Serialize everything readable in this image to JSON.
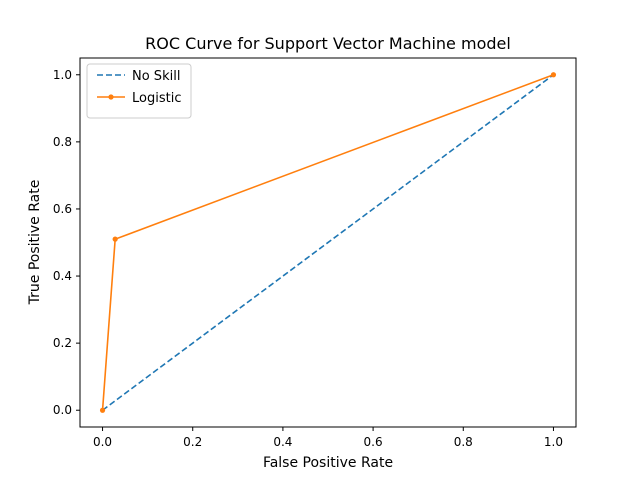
{
  "chart_data": {
    "type": "line",
    "title": "ROC Curve for Support Vector Machine model",
    "xlabel": "False Positive Rate",
    "ylabel": "True Positive Rate",
    "xlim": [
      -0.05,
      1.05
    ],
    "ylim": [
      -0.05,
      1.05
    ],
    "xticks": [
      0.0,
      0.2,
      0.4,
      0.6,
      0.8,
      1.0
    ],
    "xtick_labels": [
      "0.0",
      "0.2",
      "0.4",
      "0.6",
      "0.8",
      "1.0"
    ],
    "yticks": [
      0.0,
      0.2,
      0.4,
      0.6,
      0.8,
      1.0
    ],
    "ytick_labels": [
      "0.0",
      "0.2",
      "0.4",
      "0.6",
      "0.8",
      "1.0"
    ],
    "grid": false,
    "legend_position": "upper-left",
    "series": [
      {
        "name": "No Skill",
        "x": [
          0.0,
          1.0
        ],
        "y": [
          0.0,
          1.0
        ],
        "color": "#1f77b4",
        "linestyle": "dashed",
        "marker": "none"
      },
      {
        "name": "Logistic",
        "x": [
          0.0,
          0.028,
          1.0
        ],
        "y": [
          0.0,
          0.51,
          1.0
        ],
        "color": "#ff7f0e",
        "linestyle": "solid",
        "marker": "dot"
      }
    ]
  }
}
